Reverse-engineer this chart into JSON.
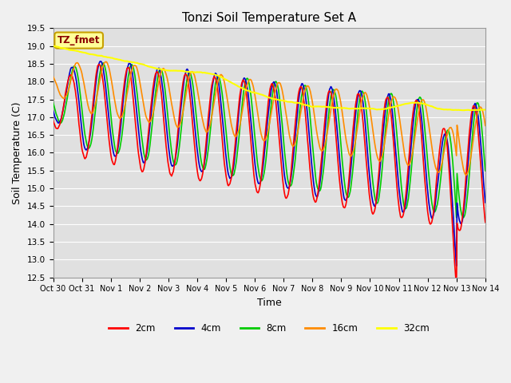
{
  "title": "Tonzi Soil Temperature Set A",
  "xlabel": "Time",
  "ylabel": "Soil Temperature (C)",
  "ylim": [
    12.5,
    19.5
  ],
  "xlim_days": [
    0,
    15
  ],
  "x_tick_labels": [
    "Oct 30",
    "Oct 31",
    "Nov 1",
    "Nov 2",
    "Nov 3",
    "Nov 4",
    "Nov 5",
    "Nov 6",
    "Nov 7",
    "Nov 8",
    "Nov 9",
    "Nov 10",
    "Nov 11",
    "Nov 12",
    "Nov 13",
    "Nov 14"
  ],
  "annotation_text": "TZ_fmet",
  "annotation_color": "#8B0000",
  "annotation_bg": "#FFFF99",
  "annotation_border": "#C8A000",
  "line_colors": {
    "2cm": "#FF0000",
    "4cm": "#0000CC",
    "8cm": "#00CC00",
    "16cm": "#FF8C00",
    "32cm": "#FFFF00"
  },
  "line_widths": {
    "2cm": 1.2,
    "4cm": 1.2,
    "8cm": 1.2,
    "16cm": 1.2,
    "32cm": 1.5
  },
  "legend_labels": [
    "2cm",
    "4cm",
    "8cm",
    "16cm",
    "32cm"
  ],
  "fig_bg_color": "#F0F0F0",
  "plot_bg_color": "#E0E0E0",
  "grid_color": "#FFFFFF",
  "title_fontsize": 11,
  "axis_label_fontsize": 9
}
